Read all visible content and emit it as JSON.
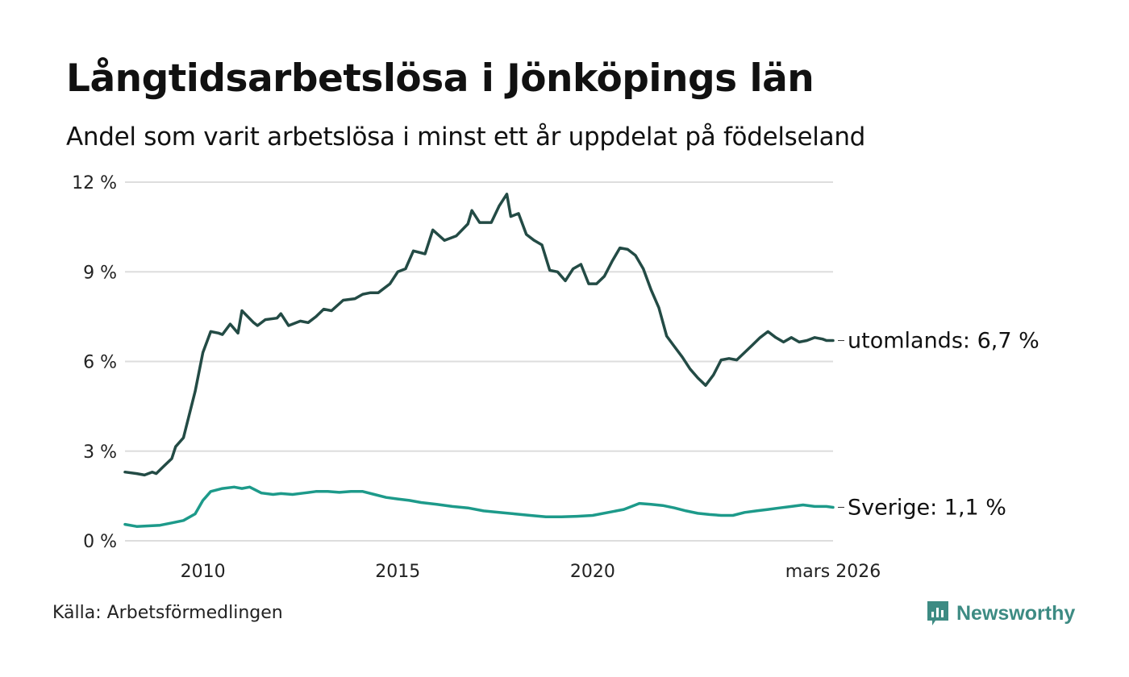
{
  "header": {
    "title": "Långtidsarbetslösa i Jönköpings län",
    "subtitle": "Andel som varit arbetslösa i minst ett år uppdelat på födelseland"
  },
  "footer": {
    "source": "Källa: Arbetsförmedlingen",
    "brand": "Newsworthy"
  },
  "colors": {
    "utomlands": "#234b45",
    "sverige": "#1d9a8a",
    "grid": "#dddddd",
    "brand": "#3d8b83"
  },
  "chart_data": {
    "type": "line",
    "title": "Långtidsarbetslösa i Jönköpings län",
    "subtitle": "Andel som varit arbetslösa i minst ett år uppdelat på födelseland",
    "xlabel": "",
    "ylabel": "",
    "ylim": [
      0,
      12
    ],
    "xlim": [
      2008.0,
      2026.17
    ],
    "y_ticks": [
      0,
      3,
      6,
      9,
      12
    ],
    "y_tick_labels": [
      "0 %",
      "3 %",
      "6 %",
      "9 %",
      "12 %"
    ],
    "x_ticks": [
      2010,
      2015,
      2020,
      2026.17
    ],
    "x_tick_labels": [
      "2010",
      "2015",
      "2020",
      "mars 2026"
    ],
    "grid": true,
    "series": [
      {
        "name": "utomlands",
        "end_label": "utomlands: 6,7 %",
        "x": [
          2008.0,
          2008.3,
          2008.5,
          2008.7,
          2008.8,
          2009.0,
          2009.2,
          2009.3,
          2009.5,
          2009.8,
          2010.0,
          2010.2,
          2010.4,
          2010.5,
          2010.7,
          2010.9,
          2011.0,
          2011.3,
          2011.4,
          2011.6,
          2011.9,
          2012.0,
          2012.2,
          2012.5,
          2012.7,
          2012.9,
          2013.1,
          2013.3,
          2013.6,
          2013.9,
          2014.1,
          2014.3,
          2014.5,
          2014.8,
          2015.0,
          2015.2,
          2015.4,
          2015.7,
          2015.9,
          2016.2,
          2016.5,
          2016.8,
          2016.9,
          2017.1,
          2017.4,
          2017.6,
          2017.8,
          2017.9,
          2018.1,
          2018.3,
          2018.5,
          2018.7,
          2018.9,
          2019.1,
          2019.3,
          2019.5,
          2019.7,
          2019.9,
          2020.1,
          2020.3,
          2020.5,
          2020.7,
          2020.9,
          2021.1,
          2021.3,
          2021.5,
          2021.7,
          2021.9,
          2022.1,
          2022.3,
          2022.5,
          2022.7,
          2022.9,
          2023.1,
          2023.3,
          2023.5,
          2023.7,
          2023.9,
          2024.1,
          2024.3,
          2024.5,
          2024.7,
          2024.9,
          2025.1,
          2025.3,
          2025.5,
          2025.7,
          2025.9,
          2026.0,
          2026.17
        ],
        "values": [
          2.3,
          2.25,
          2.2,
          2.3,
          2.25,
          2.5,
          2.75,
          3.15,
          3.45,
          5.0,
          6.3,
          7.0,
          6.95,
          6.9,
          7.25,
          6.95,
          7.7,
          7.3,
          7.2,
          7.4,
          7.45,
          7.6,
          7.2,
          7.35,
          7.3,
          7.5,
          7.75,
          7.7,
          8.05,
          8.1,
          8.25,
          8.3,
          8.3,
          8.6,
          9.0,
          9.1,
          9.7,
          9.6,
          10.4,
          10.05,
          10.2,
          10.6,
          11.05,
          10.65,
          10.65,
          11.2,
          11.6,
          10.85,
          10.95,
          10.25,
          10.05,
          9.9,
          9.05,
          9.0,
          8.7,
          9.1,
          9.25,
          8.6,
          8.6,
          8.85,
          9.35,
          9.8,
          9.75,
          9.55,
          9.1,
          8.4,
          7.8,
          6.85,
          6.5,
          6.15,
          5.75,
          5.45,
          5.2,
          5.55,
          6.05,
          6.1,
          6.05,
          6.3,
          6.55,
          6.8,
          7.0,
          6.8,
          6.65,
          6.8,
          6.65,
          6.7,
          6.8,
          6.75,
          6.7,
          6.7
        ]
      },
      {
        "name": "Sverige",
        "end_label": "Sverige: 1,1 %",
        "x": [
          2008.0,
          2008.3,
          2008.6,
          2008.9,
          2009.2,
          2009.5,
          2009.8,
          2010.0,
          2010.2,
          2010.5,
          2010.8,
          2011.0,
          2011.2,
          2011.5,
          2011.8,
          2012.0,
          2012.3,
          2012.6,
          2012.9,
          2013.2,
          2013.5,
          2013.8,
          2014.1,
          2014.4,
          2014.7,
          2015.0,
          2015.3,
          2015.6,
          2016.0,
          2016.4,
          2016.8,
          2017.2,
          2017.6,
          2018.0,
          2018.4,
          2018.8,
          2019.2,
          2019.6,
          2020.0,
          2020.4,
          2020.8,
          2021.0,
          2021.2,
          2021.5,
          2021.8,
          2022.1,
          2022.4,
          2022.7,
          2023.0,
          2023.3,
          2023.6,
          2023.9,
          2024.2,
          2024.5,
          2024.8,
          2025.1,
          2025.4,
          2025.7,
          2026.0,
          2026.17
        ],
        "values": [
          0.55,
          0.48,
          0.5,
          0.52,
          0.6,
          0.68,
          0.9,
          1.35,
          1.65,
          1.75,
          1.8,
          1.75,
          1.8,
          1.6,
          1.55,
          1.58,
          1.55,
          1.6,
          1.65,
          1.65,
          1.62,
          1.65,
          1.65,
          1.55,
          1.45,
          1.4,
          1.35,
          1.28,
          1.22,
          1.15,
          1.1,
          1.0,
          0.95,
          0.9,
          0.85,
          0.8,
          0.8,
          0.82,
          0.85,
          0.95,
          1.05,
          1.15,
          1.25,
          1.22,
          1.18,
          1.1,
          1.0,
          0.92,
          0.88,
          0.85,
          0.85,
          0.95,
          1.0,
          1.05,
          1.1,
          1.15,
          1.2,
          1.15,
          1.15,
          1.12
        ]
      }
    ]
  }
}
